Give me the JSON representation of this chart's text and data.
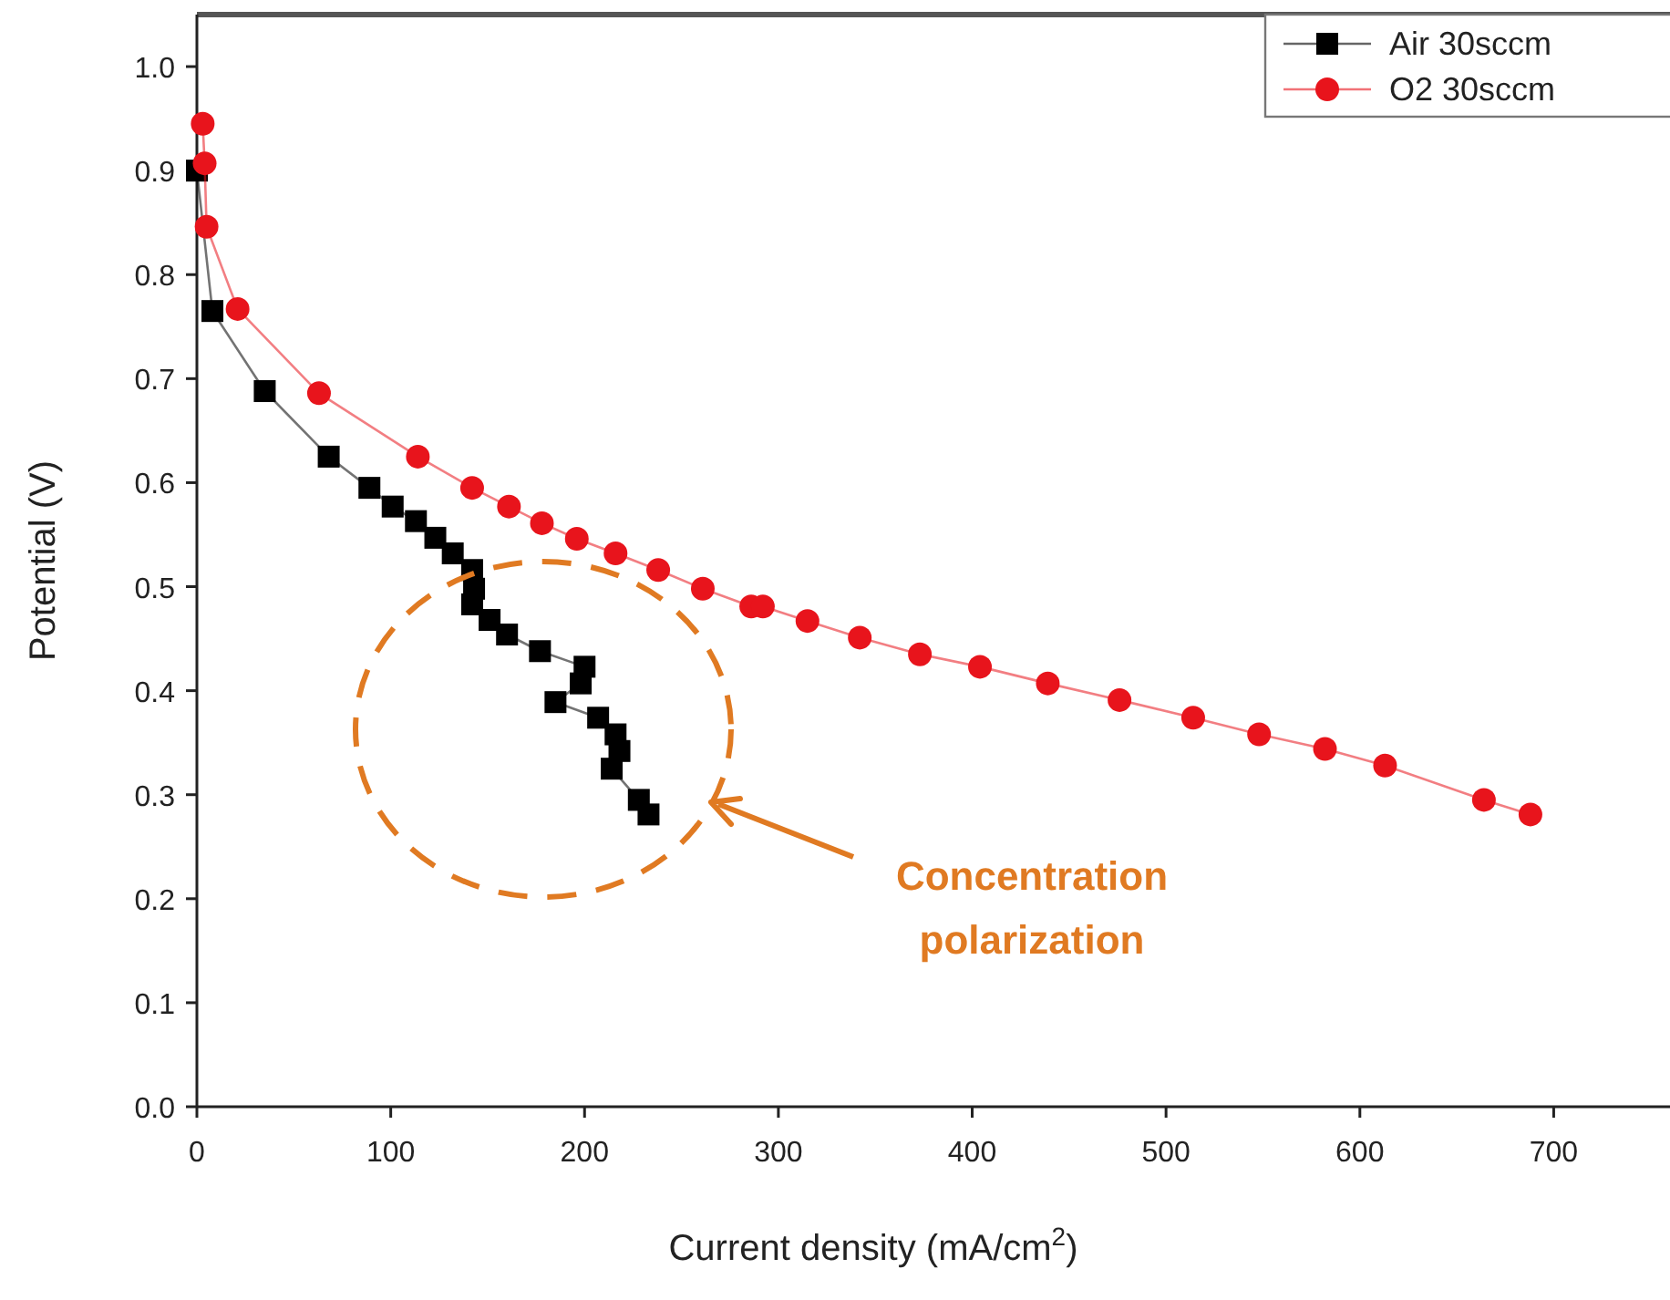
{
  "chart_data": {
    "type": "line",
    "xlabel": "Current density (mA/cm$^{2}$)",
    "ylabel": "Potential (V)",
    "xlim": [
      0,
      760
    ],
    "ylim": [
      0,
      1.05
    ],
    "xticks": [
      0,
      100,
      200,
      300,
      400,
      500,
      600,
      700
    ],
    "yticks": [
      {
        "value": 0,
        "label": "0.0"
      },
      0.1,
      0.2,
      0.3,
      0.4,
      0.5,
      0.6,
      0.7,
      0.8,
      0.9,
      {
        "value": 1,
        "label": "1.0"
      }
    ],
    "grid": false,
    "legend": "top right",
    "annotations": [
      "Concentration polarization"
    ],
    "series": [
      {
        "name": "Air 30sccm",
        "color": "#000000",
        "marker": "square",
        "x": [
          0,
          8,
          35,
          68,
          89,
          101,
          113,
          123,
          132,
          142,
          143,
          142,
          151,
          160,
          177,
          200,
          198,
          185,
          207,
          216,
          218,
          214,
          228,
          233
        ],
        "values": [
          0.9,
          0.765,
          0.688,
          0.625,
          0.595,
          0.577,
          0.563,
          0.547,
          0.532,
          0.516,
          0.498,
          0.483,
          0.468,
          0.454,
          0.438,
          0.423,
          0.407,
          0.389,
          0.374,
          0.358,
          0.342,
          0.325,
          0.295,
          0.281
        ]
      },
      {
        "name": "O2 30sccm",
        "color": "#e8141c",
        "marker": "circle",
        "x": [
          3,
          4,
          5,
          21,
          63,
          114,
          142,
          161,
          178,
          196,
          216,
          238,
          261,
          286,
          292,
          315,
          342,
          373,
          404,
          439,
          476,
          514,
          548,
          582,
          613,
          664,
          688
        ],
        "values": [
          0.945,
          0.907,
          0.846,
          0.767,
          0.686,
          0.625,
          0.595,
          0.577,
          0.561,
          0.546,
          0.532,
          0.516,
          0.498,
          0.481,
          0.481,
          0.467,
          0.451,
          0.435,
          0.423,
          0.407,
          0.391,
          0.374,
          0.358,
          0.344,
          0.328,
          0.295,
          0.281
        ]
      }
    ]
  }
}
